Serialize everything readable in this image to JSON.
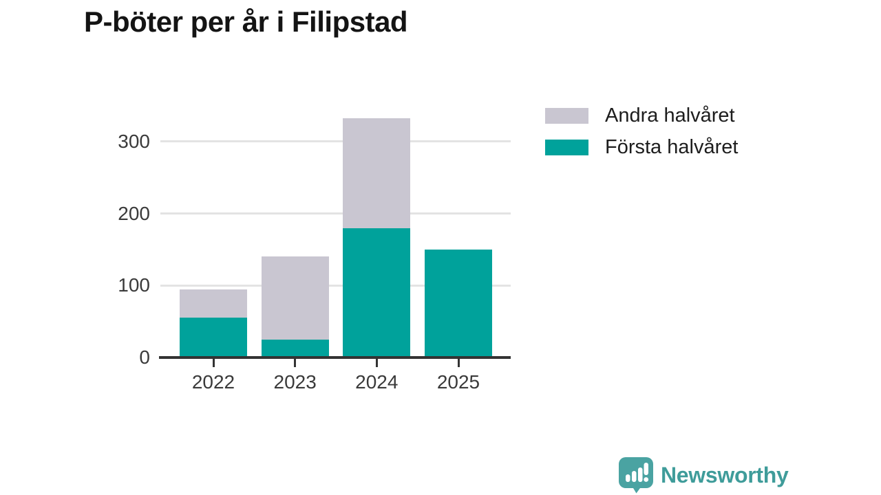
{
  "title": "P-böter per år i Filipstad",
  "colors": {
    "first_half": "#00a29b",
    "second_half": "#c9c6d1",
    "axis": "#333333",
    "grid": "#e3e3e3",
    "tick_text": "#3a3a3a",
    "title_text": "#141414",
    "brand_teal": "#3f9c9a",
    "badge_teal": "#4aa3a2",
    "background": "#ffffff"
  },
  "legend": [
    {
      "label": "Andra halvåret",
      "color": "#c9c6d1"
    },
    {
      "label": "Första halvåret",
      "color": "#00a29b"
    }
  ],
  "chart_data": {
    "type": "bar",
    "stacked": true,
    "title": "P-böter per år i Filipstad",
    "categories": [
      "2022",
      "2023",
      "2024",
      "2025"
    ],
    "series": [
      {
        "name": "Första halvåret",
        "color": "#00a29b",
        "values": [
          55,
          25,
          180,
          150
        ]
      },
      {
        "name": "Andra halvåret",
        "color": "#c9c6d1",
        "values": [
          40,
          115,
          152,
          0
        ]
      }
    ],
    "totals": [
      95,
      140,
      332,
      150
    ],
    "xlabel": "",
    "ylabel": "",
    "yticks": [
      0,
      100,
      200,
      300
    ],
    "ylim": [
      0,
      340
    ],
    "grid": true,
    "legend_position": "top-right"
  },
  "footer": {
    "brand": "Newsworthy"
  }
}
